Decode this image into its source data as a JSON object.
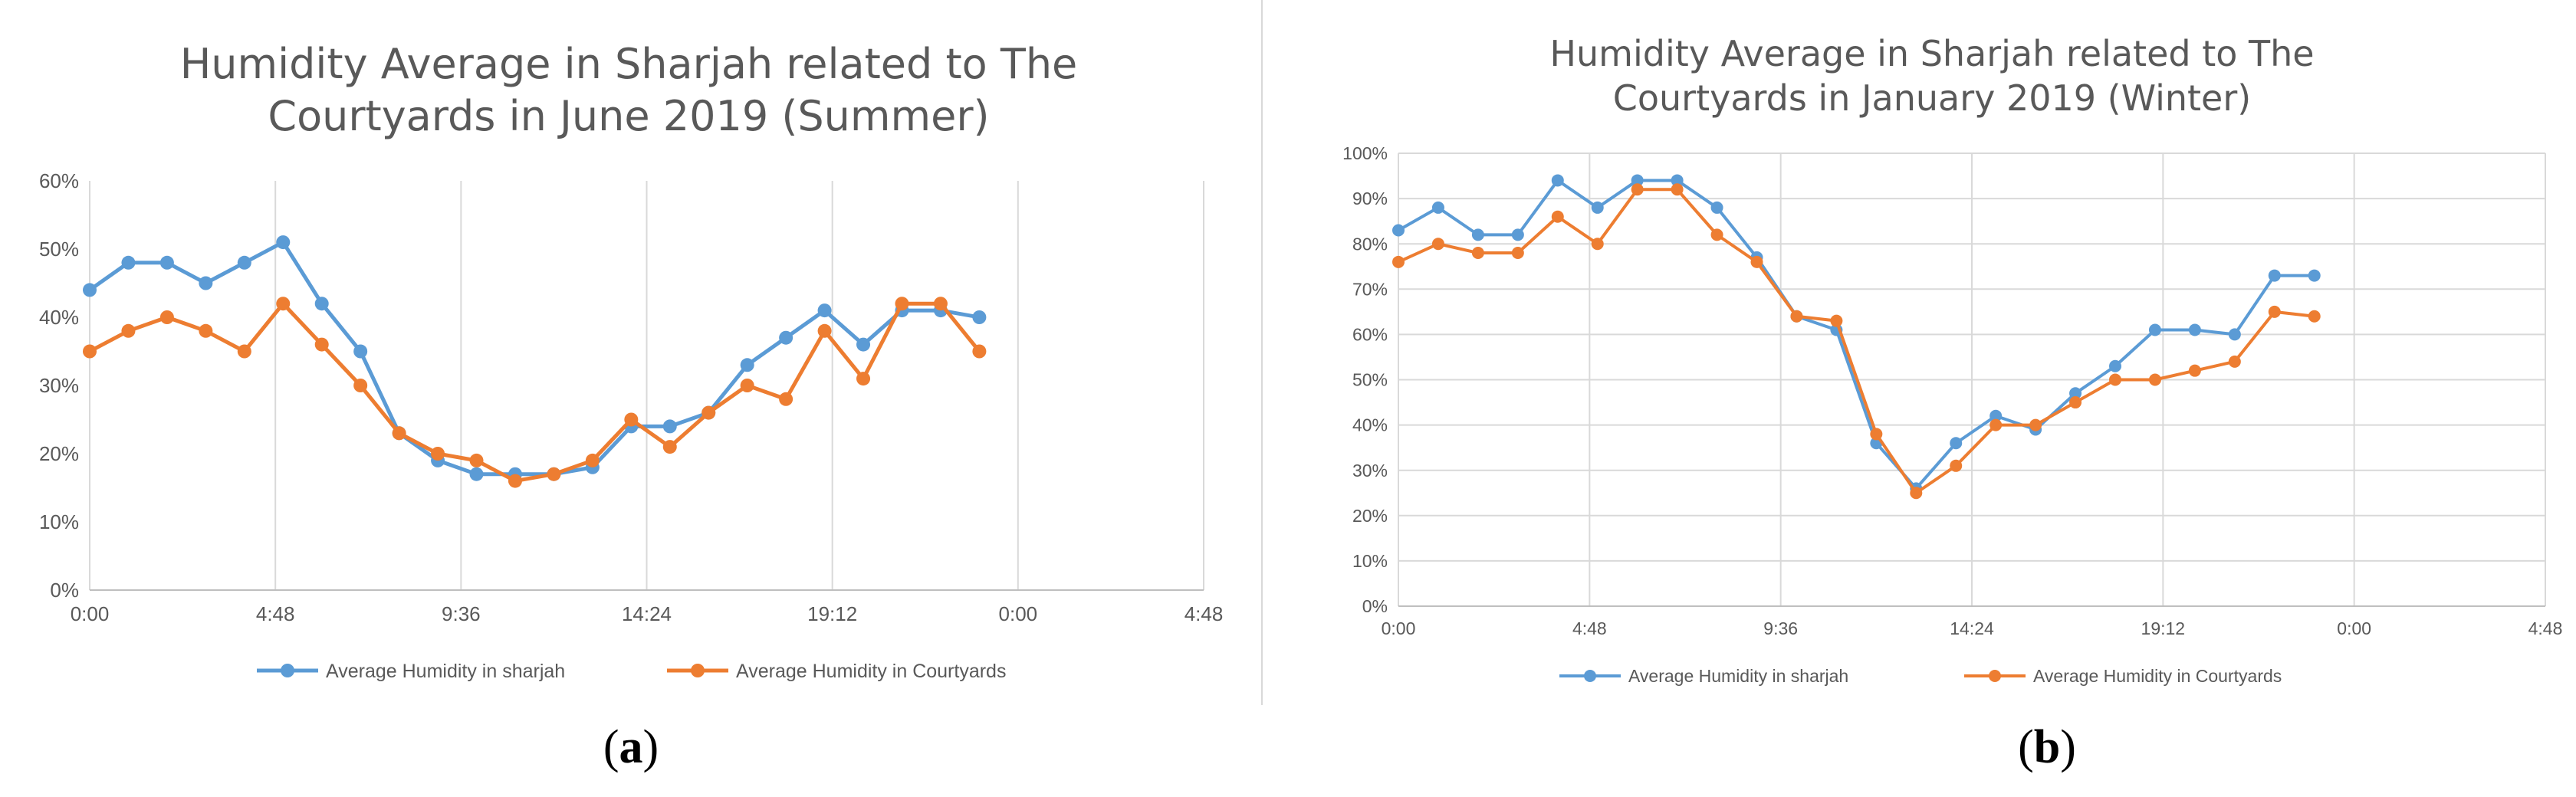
{
  "figure": {
    "label_a": "a",
    "label_b": "b"
  },
  "chart_data": [
    {
      "type": "line",
      "title": "Humidity Average in Sharjah related to The Courtyards in June 2019 (Summer)",
      "title_lines": [
        "Humidity Average in Sharjah related to The",
        "Courtyards in June 2019 (Summer)"
      ],
      "x_ticks": [
        "0:00",
        "4:48",
        "9:36",
        "14:24",
        "19:12",
        "0:00",
        "4:48"
      ],
      "x_range_hours": [
        0,
        28.8
      ],
      "y_ticks": [
        "0%",
        "10%",
        "20%",
        "30%",
        "40%",
        "50%",
        "60%"
      ],
      "ylim": [
        0,
        60
      ],
      "grid": "vertical",
      "legend": "bottom",
      "x_hours": [
        0,
        1,
        2,
        3,
        4,
        5,
        6,
        7,
        8,
        9,
        10,
        11,
        12,
        13,
        14,
        15,
        16,
        17,
        18,
        19,
        20,
        21,
        22,
        23
      ],
      "series": [
        {
          "name": "Average Humidity in sharjah",
          "color": "#5B9BD5",
          "values": [
            44,
            48,
            48,
            45,
            48,
            51,
            42,
            35,
            23,
            19,
            17,
            17,
            17,
            18,
            24,
            24,
            26,
            33,
            37,
            41,
            36,
            41,
            41,
            40
          ]
        },
        {
          "name": "Average Humidity in Courtyards",
          "color": "#ED7D31",
          "values": [
            35,
            38,
            40,
            38,
            35,
            42,
            36,
            30,
            23,
            20,
            19,
            16,
            17,
            19,
            25,
            21,
            26,
            30,
            28,
            38,
            31,
            42,
            42,
            35
          ]
        }
      ]
    },
    {
      "type": "line",
      "title": "Humidity Average in Sharjah related to The Courtyards in January 2019 (Winter)",
      "title_lines": [
        "Humidity Average in Sharjah related to The",
        "Courtyards in January 2019 (Winter)"
      ],
      "x_ticks": [
        "0:00",
        "4:48",
        "9:36",
        "14:24",
        "19:12",
        "0:00",
        "4:48"
      ],
      "x_range_hours": [
        0,
        28.8
      ],
      "y_ticks": [
        "0%",
        "10%",
        "20%",
        "30%",
        "40%",
        "50%",
        "60%",
        "70%",
        "80%",
        "90%",
        "100%"
      ],
      "ylim": [
        0,
        100
      ],
      "grid": "both",
      "legend": "bottom",
      "x_hours": [
        0,
        1,
        2,
        3,
        4,
        5,
        6,
        7,
        8,
        9,
        10,
        11,
        12,
        13,
        14,
        15,
        16,
        17,
        18,
        19,
        20,
        21,
        22,
        23
      ],
      "series": [
        {
          "name": "Average Humidity in sharjah",
          "color": "#5B9BD5",
          "values": [
            83,
            88,
            82,
            82,
            94,
            88,
            94,
            94,
            88,
            77,
            64,
            61,
            36,
            26,
            36,
            42,
            39,
            47,
            53,
            61,
            61,
            60,
            73,
            73
          ]
        },
        {
          "name": "Average Humidity in Courtyards",
          "color": "#ED7D31",
          "values": [
            76,
            80,
            78,
            78,
            86,
            80,
            92,
            92,
            82,
            76,
            64,
            63,
            38,
            25,
            31,
            40,
            40,
            45,
            50,
            50,
            52,
            54,
            65,
            64
          ]
        }
      ]
    }
  ]
}
